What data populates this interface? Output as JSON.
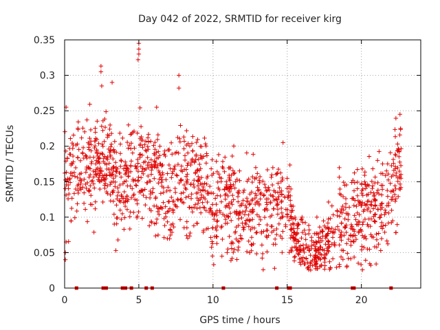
{
  "chart_data": {
    "type": "scatter",
    "title": "Day 042 of 2022, SRMTID for receiver kirg",
    "xlabel": "GPS time / hours",
    "ylabel": "SRMTID / TECUs",
    "xlim": [
      0,
      24
    ],
    "ylim": [
      0,
      0.35
    ],
    "xticks": [
      0,
      5,
      10,
      15,
      20
    ],
    "xtick_labels": [
      "0",
      "5",
      "10",
      "15",
      "20"
    ],
    "yticks": [
      0,
      0.05,
      0.1,
      0.15,
      0.2,
      0.25,
      0.3,
      0.35
    ],
    "ytick_labels": [
      "0",
      "0.05",
      "0.1",
      "0.15",
      "0.2",
      "0.25",
      "0.3",
      "0.35"
    ],
    "grid": true,
    "marker": "+",
    "color": "#e00000",
    "trend": [
      [
        0.0,
        0.16
      ],
      [
        0.5,
        0.15
      ],
      [
        1.0,
        0.16
      ],
      [
        1.5,
        0.155
      ],
      [
        2.0,
        0.17
      ],
      [
        2.5,
        0.175
      ],
      [
        3.0,
        0.18
      ],
      [
        3.5,
        0.15
      ],
      [
        4.0,
        0.14
      ],
      [
        4.5,
        0.16
      ],
      [
        5.0,
        0.17
      ],
      [
        5.5,
        0.17
      ],
      [
        6.0,
        0.14
      ],
      [
        6.5,
        0.15
      ],
      [
        7.0,
        0.13
      ],
      [
        7.5,
        0.15
      ],
      [
        8.0,
        0.16
      ],
      [
        8.5,
        0.15
      ],
      [
        9.0,
        0.15
      ],
      [
        9.5,
        0.14
      ],
      [
        10.0,
        0.1
      ],
      [
        10.5,
        0.12
      ],
      [
        11.0,
        0.12
      ],
      [
        11.5,
        0.11
      ],
      [
        12.0,
        0.11
      ],
      [
        12.5,
        0.1
      ],
      [
        13.0,
        0.12
      ],
      [
        13.5,
        0.11
      ],
      [
        14.0,
        0.11
      ],
      [
        14.5,
        0.12
      ],
      [
        15.0,
        0.12
      ],
      [
        15.5,
        0.07
      ],
      [
        16.0,
        0.06
      ],
      [
        16.5,
        0.05
      ],
      [
        17.0,
        0.05
      ],
      [
        17.5,
        0.06
      ],
      [
        18.0,
        0.07
      ],
      [
        18.5,
        0.1
      ],
      [
        19.0,
        0.09
      ],
      [
        19.5,
        0.09
      ],
      [
        20.0,
        0.1
      ],
      [
        20.5,
        0.11
      ],
      [
        21.0,
        0.1
      ],
      [
        21.5,
        0.12
      ],
      [
        22.0,
        0.14
      ],
      [
        22.5,
        0.18
      ]
    ],
    "outliers": [
      [
        5.0,
        0.345
      ],
      [
        5.0,
        0.337
      ],
      [
        5.0,
        0.33
      ],
      [
        4.95,
        0.322
      ],
      [
        2.45,
        0.313
      ],
      [
        2.45,
        0.305
      ],
      [
        7.7,
        0.3
      ],
      [
        7.7,
        0.282
      ],
      [
        3.2,
        0.29
      ],
      [
        2.5,
        0.285
      ],
      [
        0.1,
        0.255
      ],
      [
        22.6,
        0.245
      ],
      [
        4.3,
        0.23
      ],
      [
        6.2,
        0.255
      ],
      [
        0.05,
        0.04
      ],
      [
        0.05,
        0.05
      ],
      [
        0.1,
        0.065
      ],
      [
        17.2,
        0.03
      ],
      [
        17.0,
        0.1
      ],
      [
        16.0,
        0.1
      ],
      [
        10.6,
        0.045
      ],
      [
        11.0,
        0.055
      ]
    ],
    "zero_points": [
      0.8,
      2.6,
      2.8,
      3.9,
      4.1,
      4.5,
      5.5,
      5.9,
      10.7,
      14.3,
      15.1,
      15.2,
      19.4,
      19.5,
      22.0
    ],
    "series_end_hours": 22.7,
    "spread": 0.035,
    "point_count": 1600,
    "seed": 42
  }
}
